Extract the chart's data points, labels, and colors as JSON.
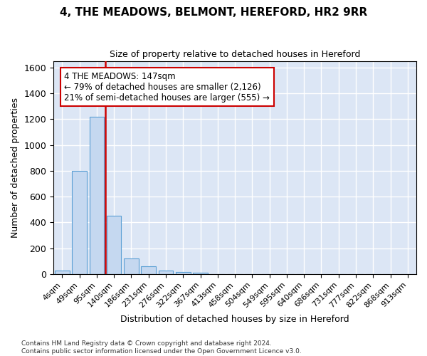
{
  "title": "4, THE MEADOWS, BELMONT, HEREFORD, HR2 9RR",
  "subtitle": "Size of property relative to detached houses in Hereford",
  "xlabel": "Distribution of detached houses by size in Hereford",
  "ylabel": "Number of detached properties",
  "bar_labels": [
    "4sqm",
    "49sqm",
    "95sqm",
    "140sqm",
    "186sqm",
    "231sqm",
    "276sqm",
    "322sqm",
    "367sqm",
    "413sqm",
    "458sqm",
    "504sqm",
    "549sqm",
    "595sqm",
    "640sqm",
    "686sqm",
    "731sqm",
    "777sqm",
    "822sqm",
    "868sqm",
    "913sqm"
  ],
  "bar_values": [
    25,
    800,
    1220,
    450,
    120,
    60,
    25,
    15,
    12,
    0,
    0,
    0,
    0,
    0,
    0,
    0,
    0,
    0,
    0,
    0,
    0
  ],
  "bar_color": "#c5d8f0",
  "bar_edge_color": "#5a9fd4",
  "vline_color": "#cc0000",
  "ylim": [
    0,
    1650
  ],
  "yticks": [
    0,
    200,
    400,
    600,
    800,
    1000,
    1200,
    1400,
    1600
  ],
  "annotation_line1": "4 THE MEADOWS: 147sqm",
  "annotation_line2": "← 79% of detached houses are smaller (2,126)",
  "annotation_line3": "21% of semi-detached houses are larger (555) →",
  "annotation_box_color": "#ffffff",
  "annotation_border_color": "#cc0000",
  "footnote": "Contains HM Land Registry data © Crown copyright and database right 2024.\nContains public sector information licensed under the Open Government Licence v3.0.",
  "background_color": "#dce6f5",
  "grid_color": "#ffffff",
  "title_fontsize": 11,
  "subtitle_fontsize": 9,
  "ylabel_fontsize": 9,
  "xlabel_fontsize": 9
}
